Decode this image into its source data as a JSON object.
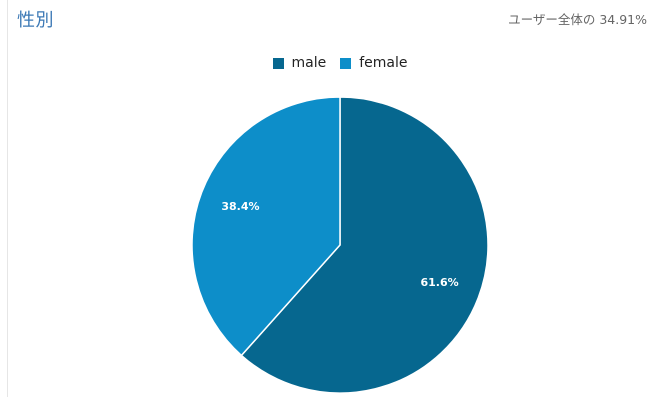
{
  "header": {
    "title": "性別",
    "summary": "ユーザー全体の 34.91%"
  },
  "chart_data": {
    "type": "pie",
    "categories": [
      "male",
      "female"
    ],
    "values": [
      61.6,
      38.4
    ],
    "labels": [
      "61.6%",
      "38.4%"
    ],
    "colors": [
      "#06678f",
      "#0d8ec9"
    ],
    "legend_position": "top-center",
    "start": "top",
    "direction": "clockwise"
  }
}
